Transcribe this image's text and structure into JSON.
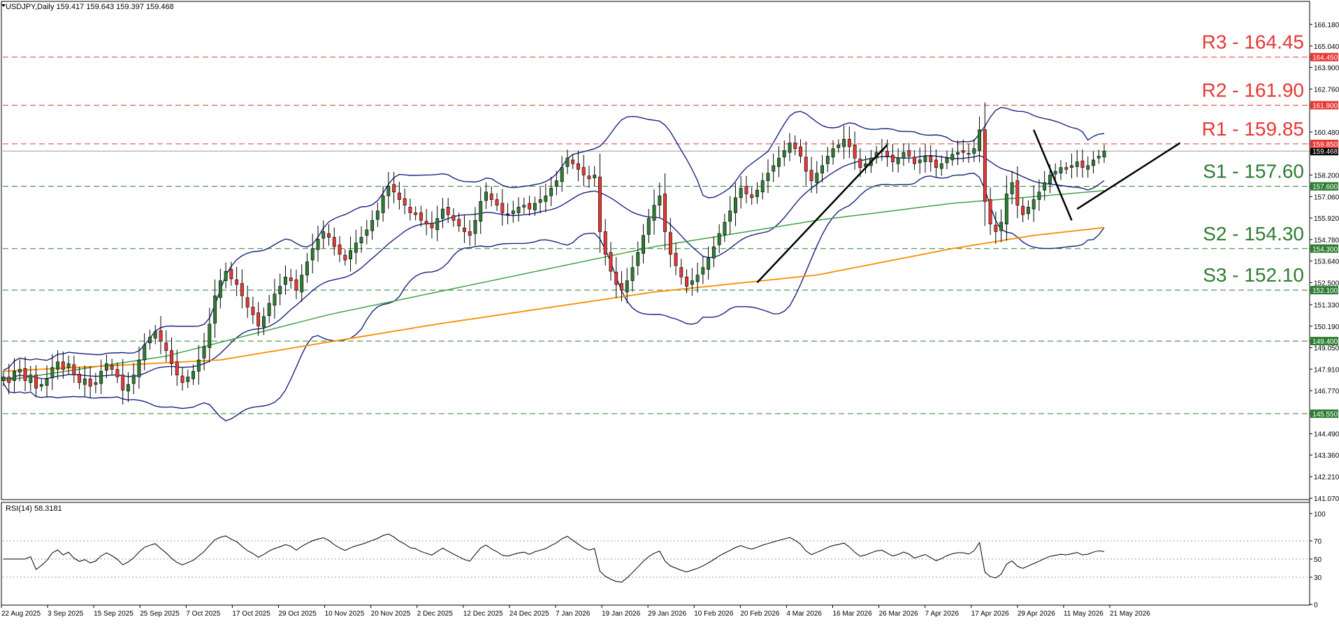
{
  "header": {
    "text": "USDJPY,Daily  159.417 159.643 159.397 159.468"
  },
  "rsi_header": {
    "text": "RSI(14) 58.3181"
  },
  "colors": {
    "support": "#2e7d32",
    "resistance": "#e53935",
    "bull": "#2e7d32",
    "bear": "#e53935",
    "bollinger": "#1a237e",
    "ma100": "#43a047",
    "ma200": "#fb8c00",
    "trend": "#000000"
  },
  "chart_data": [
    {
      "type": "candlestick",
      "title": "USDJPY,Daily",
      "ohlc_last": {
        "open": 159.417,
        "high": 159.643,
        "low": 159.397,
        "close": 159.468
      },
      "ylim": [
        141.07,
        166.81
      ],
      "y_ticks": [
        "141.070",
        "142.210",
        "143.360",
        "144.490",
        "145.550",
        "146.770",
        "147.910",
        "149.050",
        "149.400",
        "150.190",
        "151.330",
        "152.100",
        "152.500",
        "153.640",
        "154.300",
        "154.780",
        "155.920",
        "157.060",
        "157.600",
        "158.200",
        "159.468",
        "159.850",
        "160.480",
        "161.900",
        "162.760",
        "163.900",
        "164.450",
        "165.040",
        "166.180"
      ],
      "x_labels": [
        "22 Aug 2025",
        "3 Sep 2025",
        "15 Sep 2025",
        "25 Sep 2025",
        "7 Oct 2025",
        "17 Oct 2025",
        "29 Oct 2025",
        "10 Nov 2025",
        "20 Nov 2025",
        "2 Dec 2025",
        "12 Dec 2025",
        "24 Dec 2025",
        "7 Jan 2026",
        "19 Jan 2026",
        "29 Jan 2026",
        "10 Feb 2026",
        "20 Feb 2026",
        "4 Mar 2026",
        "16 Mar 2026",
        "26 Mar 2026",
        "7 Apr 2026",
        "17 Apr 2026",
        "29 Apr 2026",
        "11 May 2026",
        "21 May 2026"
      ],
      "current_price": "159.468",
      "levels": [
        {
          "name": "R3",
          "label": "R3 - 164.45",
          "tag": "164.450",
          "value": 164.45,
          "kind": "resistance"
        },
        {
          "name": "R2",
          "label": "R2 - 161.90",
          "tag": "161.900",
          "value": 161.9,
          "kind": "resistance"
        },
        {
          "name": "R1",
          "label": "R1 - 159.85",
          "tag": "159.850",
          "value": 159.85,
          "kind": "resistance"
        },
        {
          "name": "S1",
          "label": "S1 - 157.60",
          "tag": "157.600",
          "value": 157.6,
          "kind": "support"
        },
        {
          "name": "S2",
          "label": "S2 - 154.30",
          "tag": "154.300",
          "value": 154.3,
          "kind": "support"
        },
        {
          "name": "S3",
          "label": "S3 - 152.10",
          "tag": "152.100",
          "value": 152.1,
          "kind": "support"
        },
        {
          "name": "",
          "label": "",
          "tag": "149.400",
          "value": 149.4,
          "kind": "support"
        },
        {
          "name": "",
          "label": "",
          "tag": "145.550",
          "value": 145.55,
          "kind": "support"
        }
      ],
      "closes": [
        147.5,
        147.2,
        147.8,
        147.9,
        147.3,
        147.6,
        146.9,
        147.1,
        147.4,
        148.0,
        148.3,
        147.9,
        148.2,
        147.6,
        147.2,
        147.4,
        147.0,
        147.2,
        147.8,
        148.2,
        147.9,
        147.5,
        146.8,
        147.1,
        147.6,
        148.4,
        149.2,
        149.6,
        149.9,
        149.4,
        148.9,
        148.2,
        147.6,
        147.2,
        147.5,
        147.8,
        148.4,
        149.1,
        150.3,
        151.8,
        152.6,
        153.1,
        152.7,
        152.4,
        151.8,
        151.2,
        150.8,
        150.2,
        150.7,
        151.4,
        151.9,
        152.3,
        152.8,
        152.6,
        152.1,
        152.9,
        153.6,
        154.3,
        154.8,
        155.2,
        154.9,
        154.4,
        154.0,
        153.7,
        154.2,
        154.6,
        154.9,
        155.3,
        155.8,
        156.3,
        157.1,
        157.6,
        157.3,
        156.9,
        156.6,
        156.2,
        156.1,
        155.8,
        155.6,
        155.4,
        155.9,
        156.4,
        156.1,
        155.8,
        155.5,
        155.2,
        155.0,
        155.8,
        156.8,
        157.3,
        156.9,
        156.6,
        156.2,
        156.1,
        156.3,
        156.5,
        156.6,
        156.4,
        156.7,
        156.9,
        157.1,
        157.5,
        157.9,
        158.6,
        159.1,
        158.8,
        158.5,
        158.2,
        158.0,
        158.2,
        155.2,
        154.0,
        153.1,
        152.4,
        152.1,
        152.6,
        153.3,
        154.1,
        155.0,
        155.9,
        156.6,
        157.1,
        155.2,
        154.0,
        153.4,
        152.8,
        152.3,
        152.6,
        152.9,
        153.3,
        153.8,
        154.4,
        155.1,
        155.7,
        156.3,
        157.0,
        157.5,
        157.2,
        157.0,
        157.4,
        157.9,
        158.3,
        158.7,
        159.1,
        159.5,
        159.9,
        159.6,
        159.2,
        158.4,
        157.9,
        158.3,
        158.7,
        159.2,
        159.6,
        159.8,
        160.1,
        159.7,
        159.1,
        158.6,
        158.8,
        159.1,
        159.4,
        159.5,
        159.2,
        158.9,
        159.1,
        159.4,
        159.2,
        158.8,
        159.0,
        159.2,
        158.9,
        158.6,
        158.8,
        159.1,
        159.3,
        159.4,
        159.4,
        159.3,
        159.6,
        160.6,
        156.8,
        155.6,
        155.2,
        155.7,
        157.2,
        157.8,
        156.6,
        156.1,
        156.5,
        156.9,
        157.3,
        157.8,
        158.2,
        158.4,
        158.6,
        158.5,
        158.7,
        158.9,
        158.6,
        158.7,
        159.0,
        159.2,
        159.468
      ],
      "series": [
        {
          "name": "Bollinger upper"
        },
        {
          "name": "Bollinger middle"
        },
        {
          "name": "Bollinger lower"
        },
        {
          "name": "MA 100"
        },
        {
          "name": "MA 200"
        }
      ],
      "ma100_anchors": [
        [
          0,
          147.3
        ],
        [
          30,
          148.6
        ],
        [
          60,
          150.8
        ],
        [
          90,
          152.6
        ],
        [
          120,
          154.4
        ],
        [
          150,
          155.8
        ],
        [
          175,
          156.7
        ],
        [
          192,
          157.1
        ],
        [
          212,
          157.6
        ]
      ],
      "ma200_anchors": [
        [
          0,
          147.8
        ],
        [
          40,
          148.4
        ],
        [
          80,
          150.3
        ],
        [
          120,
          152.0
        ],
        [
          150,
          152.9
        ],
        [
          175,
          154.3
        ],
        [
          190,
          155.0
        ],
        [
          212,
          155.7
        ]
      ],
      "trendlines": [
        {
          "from": [
            139,
            152.5
          ],
          "to": [
            163,
            159.8
          ]
        },
        {
          "from": [
            190,
            160.6
          ],
          "to": [
            197,
            155.8
          ]
        },
        {
          "from": [
            198,
            156.4
          ],
          "to": [
            217,
            159.9
          ]
        }
      ]
    },
    {
      "type": "line",
      "title": "RSI(14) 58.3181",
      "name": "RSI(14)",
      "ylim": [
        0,
        100
      ],
      "y_ticks": [
        "100",
        "70",
        "50",
        "30",
        "0"
      ],
      "levels": [
        70,
        50,
        30
      ],
      "last": 58.3181
    }
  ]
}
